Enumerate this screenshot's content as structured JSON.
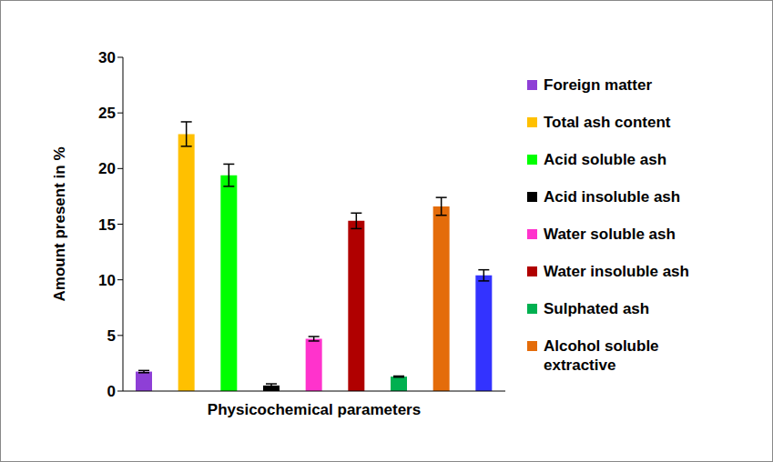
{
  "chart_data": {
    "type": "bar",
    "categories": [
      "Foreign matter",
      "Total ash content",
      "Acid soluble ash",
      "Acid insoluble ash",
      "Water soluble ash",
      "Water insoluble ash",
      "Sulphated ash",
      "Alcohol soluble extractive",
      null
    ],
    "values": [
      1.75,
      23.1,
      19.4,
      0.5,
      4.7,
      15.3,
      1.3,
      16.6,
      10.4
    ],
    "errors": [
      0.1,
      1.1,
      1.0,
      0.15,
      0.2,
      0.7,
      0.05,
      0.8,
      0.5
    ],
    "colors": [
      "#8E3FD6",
      "#FFC000",
      "#00FF00",
      "#000000",
      "#FF33CC",
      "#B00000",
      "#00B050",
      "#E46C0A",
      "#3333FF"
    ],
    "x_label": "Physicochemical parameters",
    "y_label": "Amount present in %",
    "ylim": [
      0,
      30
    ],
    "yticks": [
      0,
      5,
      10,
      15,
      20,
      25,
      30
    ],
    "legend": "right",
    "tick_labels": "y",
    "grid": false
  }
}
